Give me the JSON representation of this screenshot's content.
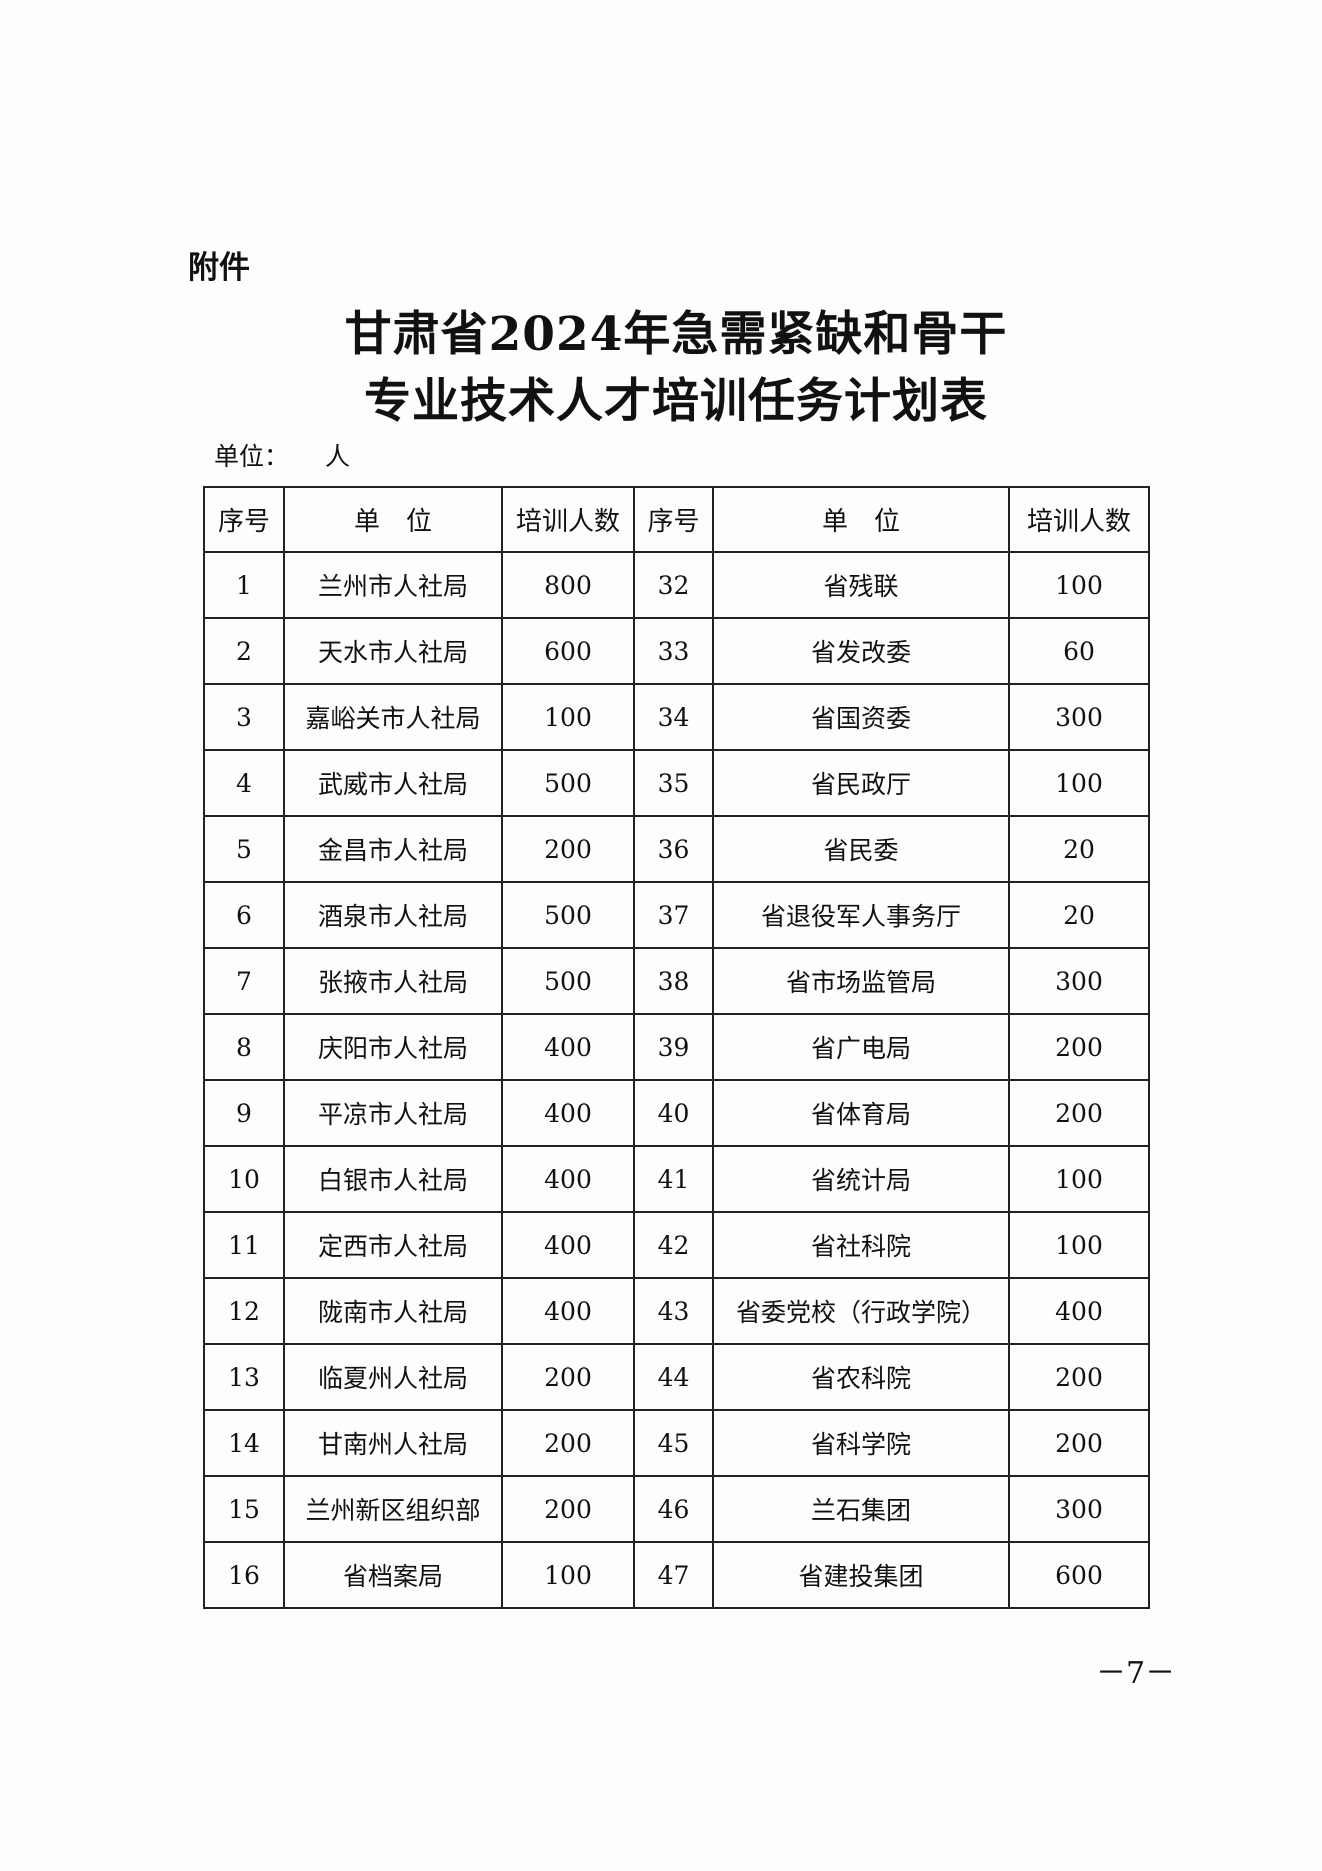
{
  "attachment_label": "附件",
  "title_line1": "甘肃省2024年急需紧缺和骨干",
  "title_line2": "专业技术人才培训任务计划表",
  "unit_label": "单位：",
  "unit_value": "人",
  "table": {
    "headers": [
      "序号",
      "单　位",
      "培训人数",
      "序号",
      "单　位",
      "培训人数"
    ],
    "rows": [
      [
        "1",
        "兰州市人社局",
        "800",
        "32",
        "省残联",
        "100"
      ],
      [
        "2",
        "天水市人社局",
        "600",
        "33",
        "省发改委",
        "60"
      ],
      [
        "3",
        "嘉峪关市人社局",
        "100",
        "34",
        "省国资委",
        "300"
      ],
      [
        "4",
        "武威市人社局",
        "500",
        "35",
        "省民政厅",
        "100"
      ],
      [
        "5",
        "金昌市人社局",
        "200",
        "36",
        "省民委",
        "20"
      ],
      [
        "6",
        "酒泉市人社局",
        "500",
        "37",
        "省退役军人事务厅",
        "20"
      ],
      [
        "7",
        "张掖市人社局",
        "500",
        "38",
        "省市场监管局",
        "300"
      ],
      [
        "8",
        "庆阳市人社局",
        "400",
        "39",
        "省广电局",
        "200"
      ],
      [
        "9",
        "平凉市人社局",
        "400",
        "40",
        "省体育局",
        "200"
      ],
      [
        "10",
        "白银市人社局",
        "400",
        "41",
        "省统计局",
        "100"
      ],
      [
        "11",
        "定西市人社局",
        "400",
        "42",
        "省社科院",
        "100"
      ],
      [
        "12",
        "陇南市人社局",
        "400",
        "43",
        "省委党校（行政学院）",
        "400"
      ],
      [
        "13",
        "临夏州人社局",
        "200",
        "44",
        "省农科院",
        "200"
      ],
      [
        "14",
        "甘南州人社局",
        "200",
        "45",
        "省科学院",
        "200"
      ],
      [
        "15",
        "兰州新区组织部",
        "200",
        "46",
        "兰石集团",
        "300"
      ],
      [
        "16",
        "省档案局",
        "100",
        "47",
        "省建投集团",
        "600"
      ]
    ]
  },
  "page_number": "－7－"
}
